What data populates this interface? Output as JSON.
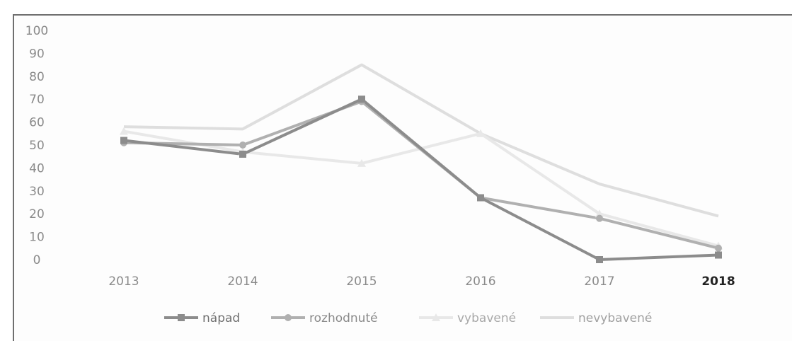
{
  "chart_data": {
    "type": "line",
    "title": "",
    "xlabel": "",
    "ylabel": "",
    "categories": [
      "2013",
      "2014",
      "2015",
      "2016",
      "2017",
      "2018"
    ],
    "highlight_category": "2018",
    "ylim": [
      0,
      100
    ],
    "yticks": [
      "0",
      "10",
      "20",
      "30",
      "40",
      "50",
      "60",
      "70",
      "80",
      "90",
      "100"
    ],
    "grid": false,
    "legend_position": "bottom",
    "series": [
      {
        "name": "nápad",
        "values": [
          52,
          46,
          70,
          27,
          0,
          2
        ],
        "color": "#8c8c8c",
        "marker": "square"
      },
      {
        "name": "rozhodnuté",
        "values": [
          51,
          50,
          69,
          27,
          18,
          5
        ],
        "color": "#b0b0b0",
        "marker": "circle"
      },
      {
        "name": "vybavené",
        "values": [
          56,
          47,
          42,
          55,
          20,
          6
        ],
        "color": "#e8e8e8",
        "marker": "triangle"
      },
      {
        "name": "nevybavené",
        "values": [
          58,
          57,
          85,
          55,
          33,
          19
        ],
        "color": "#dedede",
        "marker": "none"
      }
    ]
  }
}
